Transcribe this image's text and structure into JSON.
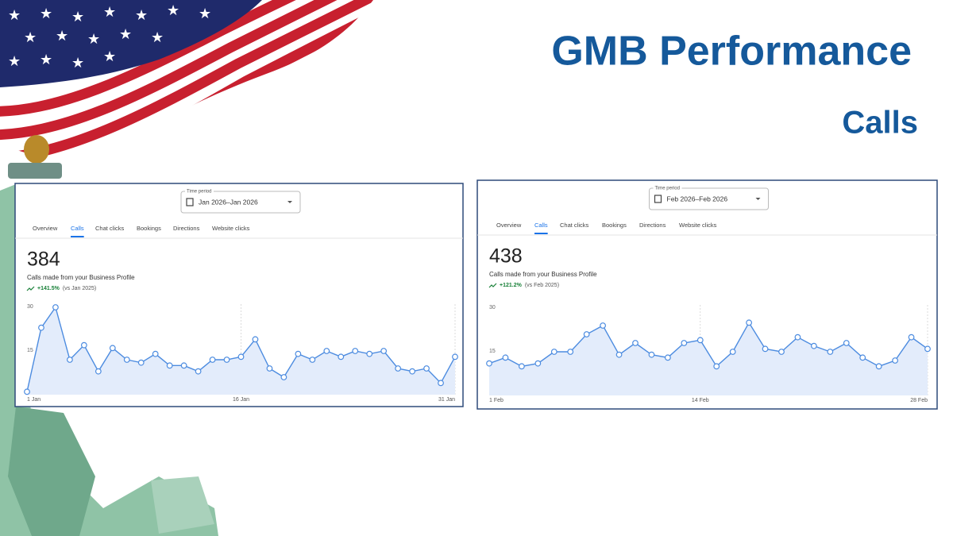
{
  "header": {
    "title": "GMB Performance",
    "subtitle": "Calls"
  },
  "chart_data": [
    {
      "type": "line",
      "time_period_label": "Time period",
      "time_period": "Jan 2026–Jan 2026",
      "tabs": [
        "Overview",
        "Calls",
        "Chat clicks",
        "Bookings",
        "Directions",
        "Website clicks"
      ],
      "total": 384,
      "metric": "Calls made from your Business Profile",
      "change": "+141.5%",
      "comparison": "(vs Jan 2025)",
      "categories": [
        "1 Jan",
        null,
        null,
        null,
        null,
        null,
        null,
        null,
        null,
        null,
        null,
        null,
        null,
        null,
        null,
        "16 Jan",
        null,
        null,
        null,
        null,
        null,
        null,
        null,
        null,
        null,
        null,
        null,
        null,
        null,
        null,
        "31 Jan"
      ],
      "values": [
        1,
        23,
        30,
        12,
        17,
        8,
        16,
        12,
        11,
        14,
        10,
        10,
        8,
        12,
        12,
        13,
        19,
        9,
        6,
        14,
        12,
        15,
        13,
        15,
        14,
        15,
        9,
        8,
        9,
        4,
        13
      ],
      "color": "#4d8ce0",
      "ylim": [
        0,
        30
      ],
      "yticks": [
        15,
        30
      ]
    },
    {
      "type": "line",
      "time_period_label": "Time period",
      "time_period": "Feb 2026–Feb 2026",
      "tabs": [
        "Overview",
        "Calls",
        "Chat clicks",
        "Bookings",
        "Directions",
        "Website clicks"
      ],
      "total": 438,
      "metric": "Calls made from your Business Profile",
      "change": "+121.2%",
      "comparison": "(vs Feb 2025)",
      "categories": [
        "1 Feb",
        null,
        null,
        null,
        null,
        null,
        null,
        null,
        null,
        null,
        null,
        null,
        null,
        "14 Feb",
        null,
        null,
        null,
        null,
        null,
        null,
        null,
        null,
        null,
        null,
        null,
        null,
        null,
        "28 Feb"
      ],
      "values": [
        11,
        13,
        10,
        11,
        15,
        15,
        21,
        24,
        14,
        18,
        14,
        13,
        18,
        19,
        10,
        15,
        25,
        16,
        15,
        20,
        17,
        15,
        18,
        13,
        10,
        12,
        20,
        16
      ],
      "color": "#4d8ce0",
      "ylim": [
        0,
        30
      ],
      "yticks": [
        15,
        30
      ]
    }
  ]
}
